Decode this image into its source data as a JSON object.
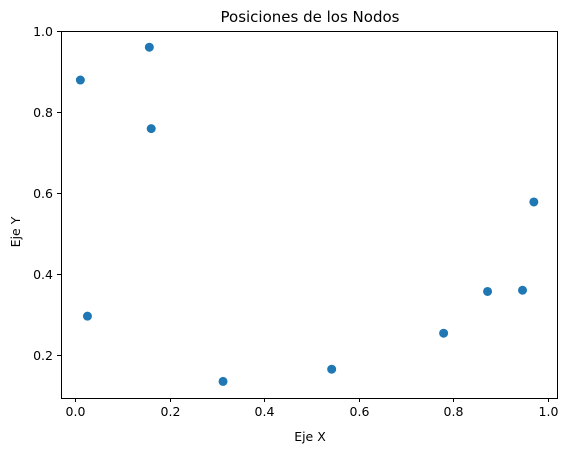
{
  "chart_data": {
    "type": "scatter",
    "title": "Posiciones de los Nodos",
    "xlabel": "Eje X",
    "ylabel": "Eje Y",
    "xlim": [
      -0.03,
      1.02
    ],
    "ylim": [
      0.094,
      1.0
    ],
    "x_ticks": [
      0.0,
      0.2,
      0.4,
      0.6,
      0.8,
      1.0
    ],
    "x_tick_labels": [
      "0.0",
      "0.2",
      "0.4",
      "0.6",
      "0.8",
      "1.0"
    ],
    "y_ticks": [
      0.2,
      0.4,
      0.6,
      0.8,
      1.0
    ],
    "y_tick_labels": [
      "0.2",
      "0.4",
      "0.6",
      "0.8",
      "1.0"
    ],
    "grid": false,
    "series": [
      {
        "color": "#1f77b4",
        "x": [
          0.011,
          0.157,
          0.161,
          0.026,
          0.313,
          0.543,
          0.78,
          0.873,
          0.947,
          0.971
        ],
        "y": [
          0.879,
          0.96,
          0.759,
          0.296,
          0.135,
          0.165,
          0.254,
          0.357,
          0.36,
          0.578
        ]
      }
    ]
  }
}
